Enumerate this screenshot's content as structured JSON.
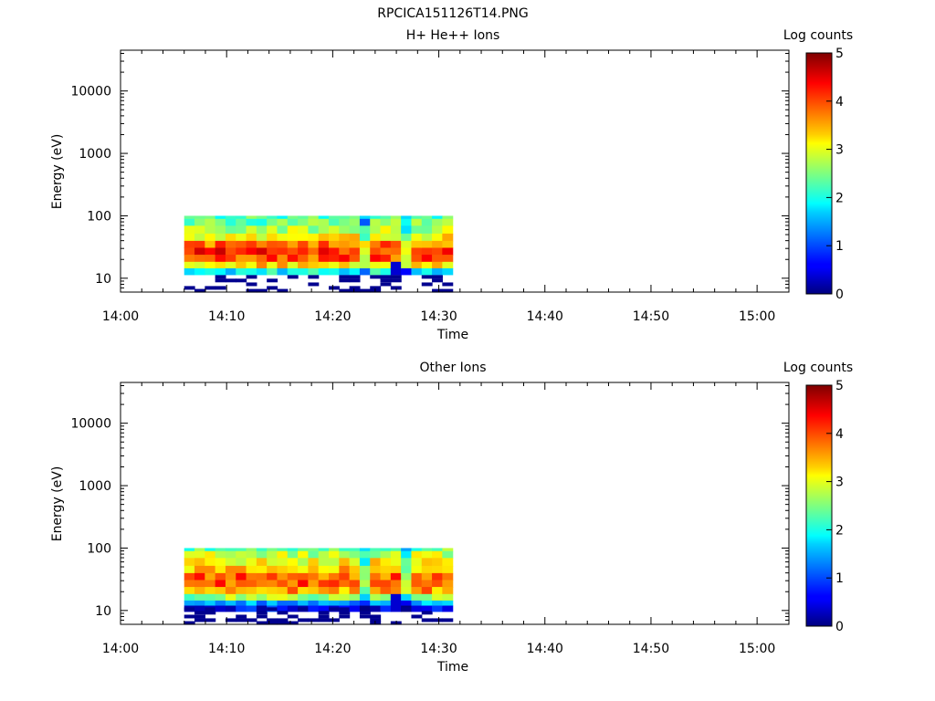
{
  "figure_title": "RPCICA151126T14.PNG",
  "chart_data": [
    {
      "type": "heatmap",
      "title": "H+ He++ Ions",
      "xlabel": "Time",
      "ylabel": "Energy (eV)",
      "x_tick_labels": [
        "14:00",
        "14:10",
        "14:20",
        "14:30",
        "14:40",
        "14:50",
        "15:00"
      ],
      "x_range_minutes": [
        0,
        63
      ],
      "y_scale": "log",
      "y_tick_labels": [
        "10",
        "100",
        "1000",
        "10000"
      ],
      "y_range_ev": [
        6,
        45000
      ],
      "colorbar": {
        "label": "Log counts",
        "range": [
          0,
          5
        ],
        "tick_labels": [
          "0",
          "1",
          "2",
          "3",
          "4",
          "5"
        ]
      },
      "data_extent": {
        "time_start_minutes": 6,
        "time_end_minutes": 31.3,
        "energy_min_ev": 6,
        "energy_max_ev": 100
      },
      "profile": {
        "energy_ev": [
          100,
          80,
          60,
          45,
          35,
          27,
          21,
          16,
          13
        ],
        "log_counts": [
          2.2,
          2.4,
          2.8,
          3.2,
          3.8,
          4.2,
          4.0,
          3.3,
          1.9
        ]
      }
    },
    {
      "type": "heatmap",
      "title": "Other Ions",
      "xlabel": "Time",
      "ylabel": "Energy (eV)",
      "x_tick_labels": [
        "14:00",
        "14:10",
        "14:20",
        "14:30",
        "14:40",
        "14:50",
        "15:00"
      ],
      "x_range_minutes": [
        0,
        63
      ],
      "y_scale": "log",
      "y_tick_labels": [
        "10",
        "100",
        "1000",
        "10000"
      ],
      "y_range_ev": [
        6,
        45000
      ],
      "colorbar": {
        "label": "Log counts",
        "range": [
          0,
          5
        ],
        "tick_labels": [
          "0",
          "1",
          "2",
          "3",
          "4",
          "5"
        ]
      },
      "data_extent": {
        "time_start_minutes": 6,
        "time_end_minutes": 31.3,
        "energy_min_ev": 6,
        "energy_max_ev": 100
      },
      "profile": {
        "energy_ev": [
          100,
          80,
          60,
          45,
          35,
          27,
          21,
          16,
          13,
          11
        ],
        "log_counts": [
          2.4,
          2.8,
          3.1,
          3.4,
          3.9,
          4.0,
          3.6,
          2.6,
          1.4,
          0.6
        ]
      }
    }
  ]
}
